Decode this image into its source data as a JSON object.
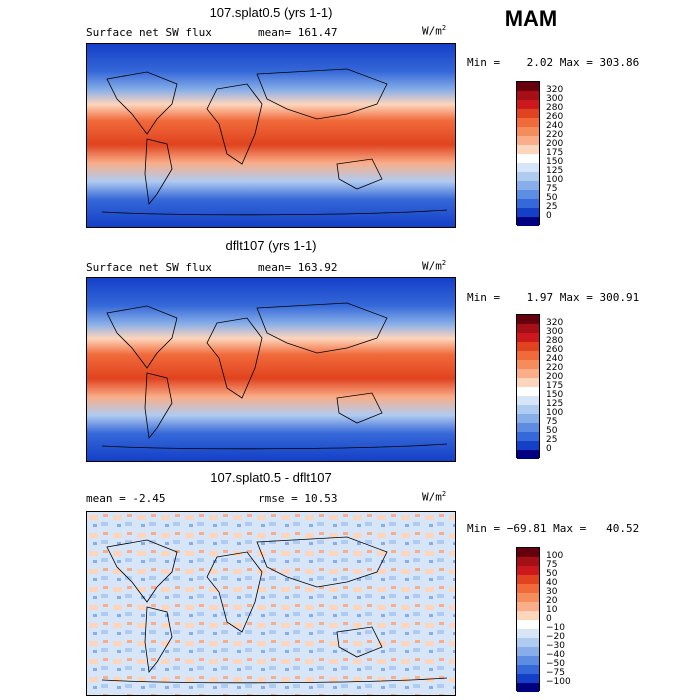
{
  "season": "MAM",
  "units_base": "W/m",
  "units_exp": "2",
  "panels": [
    {
      "title": "107.splat0.5 (yrs 1-1)",
      "left_label": "Surface net SW flux",
      "right_label": "mean= 161.47",
      "minmax": "Min =    2.02 Max = 303.86",
      "type": "flux"
    },
    {
      "title": "dflt107 (yrs 1-1)",
      "left_label": "Surface net SW flux",
      "right_label": "mean= 163.92",
      "minmax": "Min =    1.97 Max = 300.91",
      "type": "flux"
    },
    {
      "title": "107.splat0.5 - dflt107",
      "left_label": "mean =   -2.45",
      "right_label": "rmse =   10.53",
      "minmax": "Min = −69.81 Max =   40.52",
      "type": "diff"
    }
  ],
  "flux_colorbar": {
    "labels": [
      "320",
      "300",
      "280",
      "260",
      "240",
      "220",
      "200",
      "175",
      "150",
      "125",
      "100",
      "75",
      "50",
      "25",
      "0"
    ],
    "colors": [
      "#67000d",
      "#a50f15",
      "#cb181d",
      "#e0431f",
      "#f06a3a",
      "#f58c5b",
      "#f9ad88",
      "#fdd5bc",
      "#ffffff",
      "#d6e5f7",
      "#b0cbf0",
      "#87aee8",
      "#5c8de0",
      "#3568d8",
      "#1440c8",
      "#000080"
    ]
  },
  "diff_colorbar": {
    "labels": [
      "100",
      "75",
      "50",
      "40",
      "30",
      "20",
      "10",
      "0",
      "−10",
      "−20",
      "−30",
      "−40",
      "−50",
      "−75",
      "−100"
    ],
    "colors": [
      "#67000d",
      "#a50f15",
      "#cb181d",
      "#e0431f",
      "#f06a3a",
      "#f58c5b",
      "#f9ad88",
      "#fdd5bc",
      "#ffffff",
      "#d6e5f7",
      "#b0cbf0",
      "#87aee8",
      "#5c8de0",
      "#3568d8",
      "#1440c8",
      "#000080"
    ]
  }
}
